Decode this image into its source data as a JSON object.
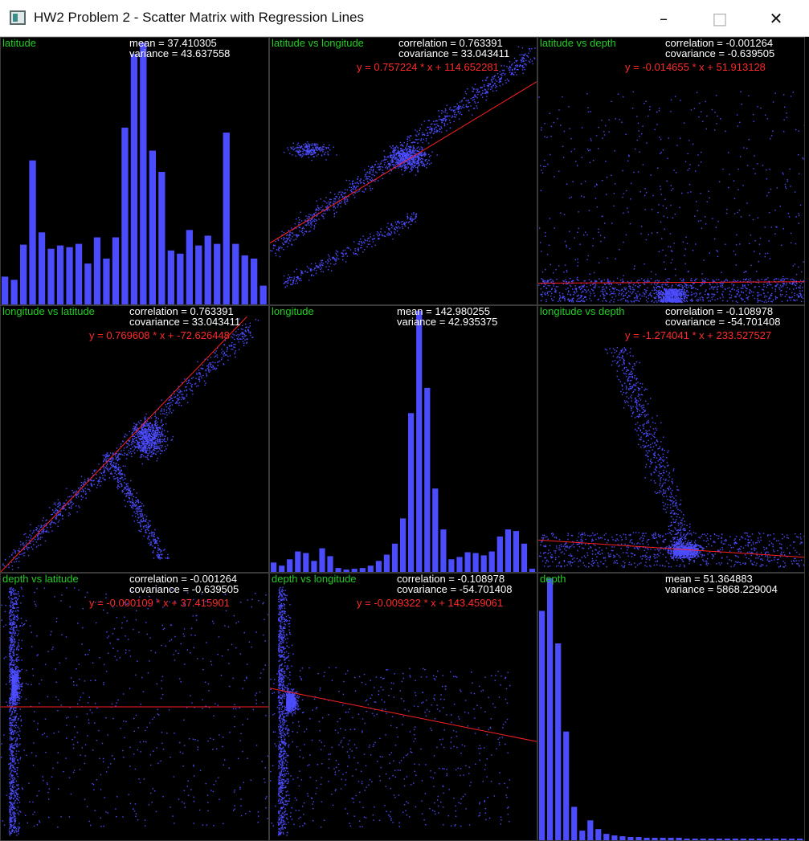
{
  "window": {
    "title": "HW2 Problem 2 - Scatter Matrix with Regression Lines",
    "minimize_glyph": "–",
    "maximize_glyph": "□",
    "close_glyph": "✕",
    "icon": "app-window-icon"
  },
  "colors": {
    "points": "#4c4cff",
    "regression": "#ff2020",
    "label": "#22cc22",
    "stats": "#ffffff",
    "equation": "#ff2a2a",
    "background": "#000000"
  },
  "panels": {
    "lat_hist": {
      "label": "latitude",
      "stat1": "mean = 37.410305",
      "stat2": "variance = 43.637558"
    },
    "lat_lon": {
      "label": "latitude vs longitude",
      "stat1": "correlation = 0.763391",
      "stat2": "covariance = 33.043411",
      "equation": "y = 0.757224 * x + 114.652281"
    },
    "lat_depth": {
      "label": "latitude vs depth",
      "stat1": "correlation = -0.001264",
      "stat2": "covariance = -0.639505",
      "equation": "y = -0.014655 * x + 51.913128"
    },
    "lon_lat": {
      "label": "longitude vs latitude",
      "stat1": "correlation = 0.763391",
      "stat2": "covariance = 33.043411",
      "equation": "y = 0.769608 * x + -72.626448"
    },
    "lon_hist": {
      "label": "longitude",
      "stat1": "mean = 142.980255",
      "stat2": "variance = 42.935375"
    },
    "lon_depth": {
      "label": "longitude vs depth",
      "stat1": "correlation = -0.108978",
      "stat2": "covariance = -54.701408",
      "equation": "y = -1.274041 * x + 233.527527"
    },
    "depth_lat": {
      "label": "depth vs latitude",
      "stat1": "correlation = -0.001264",
      "stat2": "covariance = -0.639505",
      "equation": "y = -0.000109 * x + 37.415901"
    },
    "depth_lon": {
      "label": "depth vs longitude",
      "stat1": "correlation = -0.108978",
      "stat2": "covariance = -54.701408",
      "equation": "y = -0.009322 * x + 143.459061"
    },
    "depth_hist": {
      "label": "depth",
      "stat1": "mean = 51.364883",
      "stat2": "variance = 5868.229004"
    }
  },
  "chart_data": [
    {
      "type": "bar",
      "panel": "lat_hist",
      "bin_counts": [
        34,
        30,
        73,
        176,
        88,
        68,
        72,
        70,
        74,
        50,
        82,
        56,
        82,
        216,
        306,
        320,
        188,
        162,
        66,
        62,
        91,
        72,
        84,
        74,
        210,
        74,
        60,
        56,
        23
      ]
    },
    {
      "type": "scatter",
      "panel": "lat_lon",
      "regression": {
        "slope": 0.757224,
        "intercept": 114.652281
      }
    },
    {
      "type": "scatter",
      "panel": "lat_depth",
      "regression": {
        "slope": -0.014655,
        "intercept": 51.913128
      }
    },
    {
      "type": "scatter",
      "panel": "lon_lat",
      "regression": {
        "slope": 0.769608,
        "intercept": -72.626448
      }
    },
    {
      "type": "bar",
      "panel": "lon_hist",
      "bin_counts": [
        12,
        8,
        16,
        26,
        24,
        14,
        30,
        20,
        5,
        3,
        4,
        5,
        8,
        14,
        22,
        36,
        68,
        202,
        332,
        234,
        106,
        54,
        16,
        19,
        25,
        24,
        21,
        26,
        45,
        54,
        52,
        36,
        4
      ]
    },
    {
      "type": "scatter",
      "panel": "lon_depth",
      "regression": {
        "slope": -1.274041,
        "intercept": 233.527527
      }
    },
    {
      "type": "scatter",
      "panel": "depth_lat",
      "regression": {
        "slope": -0.000109,
        "intercept": 37.415901
      }
    },
    {
      "type": "scatter",
      "panel": "depth_lon",
      "regression": {
        "slope": -0.009322,
        "intercept": 143.459061
      }
    },
    {
      "type": "bar",
      "panel": "depth_hist",
      "bin_counts": [
        289,
        330,
        248,
        137,
        42,
        12,
        25,
        14,
        8,
        6,
        5,
        4,
        4,
        3,
        3,
        3,
        3,
        3,
        2,
        2,
        2,
        2,
        2,
        2,
        2,
        2,
        2,
        2,
        2,
        2,
        2,
        2,
        2
      ]
    }
  ]
}
